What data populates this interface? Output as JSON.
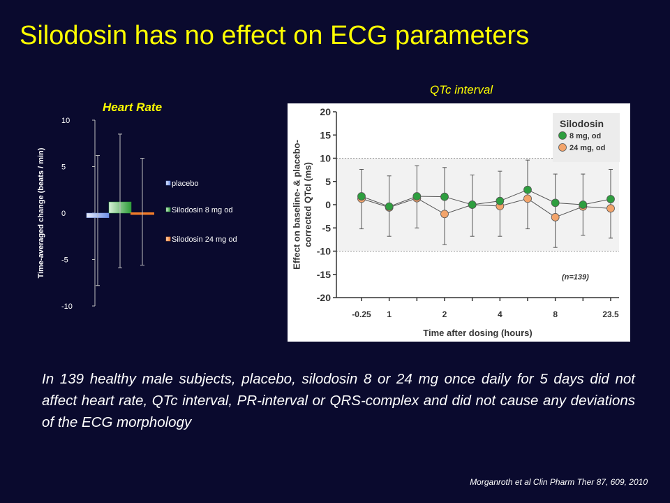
{
  "slide": {
    "title": "Silodosin has no effect on ECG parameters",
    "body_text": "In 139 healthy male subjects, placebo, silodosin 8 or 24 mg once daily for 5 days did not affect heart rate, QTc interval, PR-interval or  QRS-complex and did not cause any deviations of the ECG morphology",
    "citation": "Morganroth et al Clin Pharm Ther 87, 609, 2010"
  },
  "colors": {
    "background": "#0a0a2e",
    "title": "#ffff00",
    "placebo": "#6f8fe6",
    "silodosin_8mg": "#2f9d3a",
    "silodosin_24mg": "#f07b2a",
    "qtc_8mg": "#2e9e3f",
    "qtc_24mg": "#f2a46b"
  },
  "chart_data": [
    {
      "type": "bar",
      "title": "Heart Rate",
      "xlabel": "",
      "ylabel": "Time-averaged  change (beats / min)",
      "ylim": [
        -10,
        10
      ],
      "yticks": [
        10,
        5,
        0,
        -5,
        -10
      ],
      "grid": false,
      "legend_position": "right",
      "series": [
        {
          "name": "placebo",
          "value": -0.5,
          "error_low": -7.8,
          "error_high": 6.2
        },
        {
          "name": "Silodosin 8 mg od",
          "value": 1.2,
          "error_low": -5.9,
          "error_high": 8.5
        },
        {
          "name": "Silodosin 24 mg od",
          "value": 0.0,
          "error_low": -5.6,
          "error_high": 5.9
        }
      ]
    },
    {
      "type": "line",
      "title": "QTc interval",
      "xlabel": "Time after dosing (hours)",
      "ylabel": "Effect on baseline- & placebo-corrected QTcI (ms)",
      "ylabel_lines": [
        "Effect on baseline- & placebo-",
        "corrected QTcI (ms)"
      ],
      "ylim": [
        -20,
        20
      ],
      "yticks": [
        20,
        15,
        10,
        5,
        0,
        -5,
        -10,
        -15,
        -20
      ],
      "reference_lines": [
        10,
        -10
      ],
      "x_positions": [
        0,
        1,
        2,
        3,
        4,
        5,
        6,
        7,
        8,
        9
      ],
      "x_tick_labels": [
        "-0.25",
        "1",
        "",
        "2",
        "",
        "4",
        "",
        "8",
        "",
        "23.5"
      ],
      "legend_title": "Silodosin",
      "legend_position": "top-right",
      "annotation": "(n=139)",
      "error_bars": [
        {
          "low": -5.2,
          "high": 7.6
        },
        {
          "low": -6.8,
          "high": 6.2
        },
        {
          "low": -5.0,
          "high": 8.4
        },
        {
          "low": -8.6,
          "high": 8.0
        },
        {
          "low": -6.8,
          "high": 6.4
        },
        {
          "low": -6.8,
          "high": 7.2
        },
        {
          "low": -5.2,
          "high": 9.6
        },
        {
          "low": -9.2,
          "high": 6.6
        },
        {
          "low": -6.6,
          "high": 6.6
        },
        {
          "low": -7.2,
          "high": 7.6
        }
      ],
      "series": [
        {
          "name": "8 mg, od",
          "values": [
            1.8,
            -0.4,
            1.8,
            1.7,
            0.0,
            0.8,
            3.2,
            0.4,
            0.0,
            1.2
          ]
        },
        {
          "name": "24 mg, od",
          "values": [
            1.3,
            -0.6,
            1.4,
            -2.0,
            0.0,
            -0.3,
            1.3,
            -2.7,
            -0.4,
            -0.8
          ]
        }
      ]
    }
  ]
}
